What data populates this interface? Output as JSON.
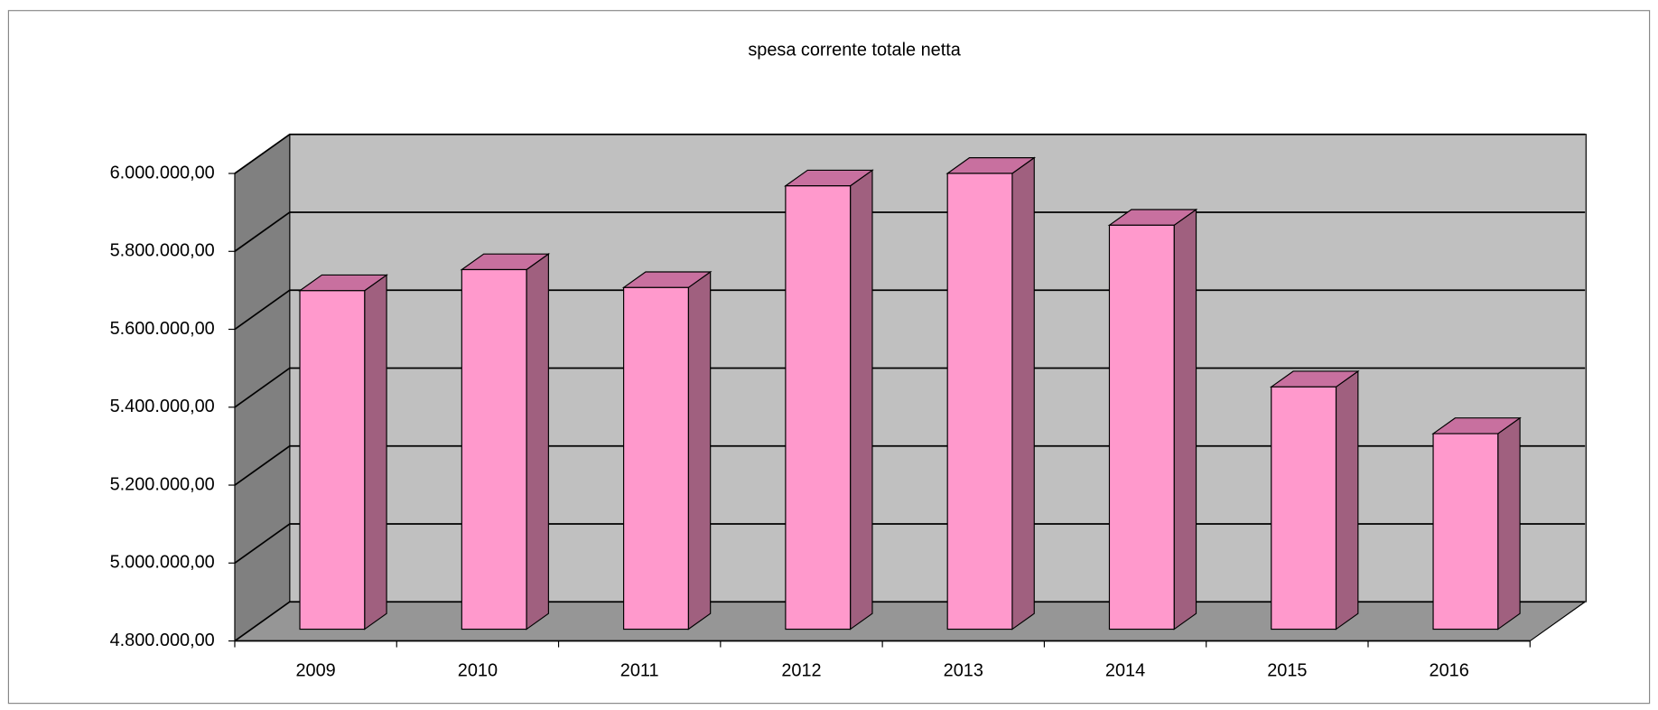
{
  "chart_data": {
    "type": "bar3d",
    "title": "spesa corrente totale netta",
    "categories": [
      "2009",
      "2010",
      "2011",
      "2012",
      "2013",
      "2014",
      "2015",
      "2016"
    ],
    "values": [
      5669000,
      5723000,
      5677000,
      5938000,
      5970000,
      5837000,
      5422000,
      5302000
    ],
    "color": "#ff99cc",
    "ylim": [
      4800000,
      6000000
    ],
    "yticks": [
      {
        "value": 4800000,
        "label": "4.800.000,00"
      },
      {
        "value": 5000000,
        "label": "5.000.000,00"
      },
      {
        "value": 5200000,
        "label": "5.200.000,00"
      },
      {
        "value": 5400000,
        "label": "5.400.000,00"
      },
      {
        "value": 5600000,
        "label": "5.600.000,00"
      },
      {
        "value": 5800000,
        "label": "5.800.000,00"
      },
      {
        "value": 6000000,
        "label": "6.000.000,00"
      }
    ],
    "grid": true
  }
}
